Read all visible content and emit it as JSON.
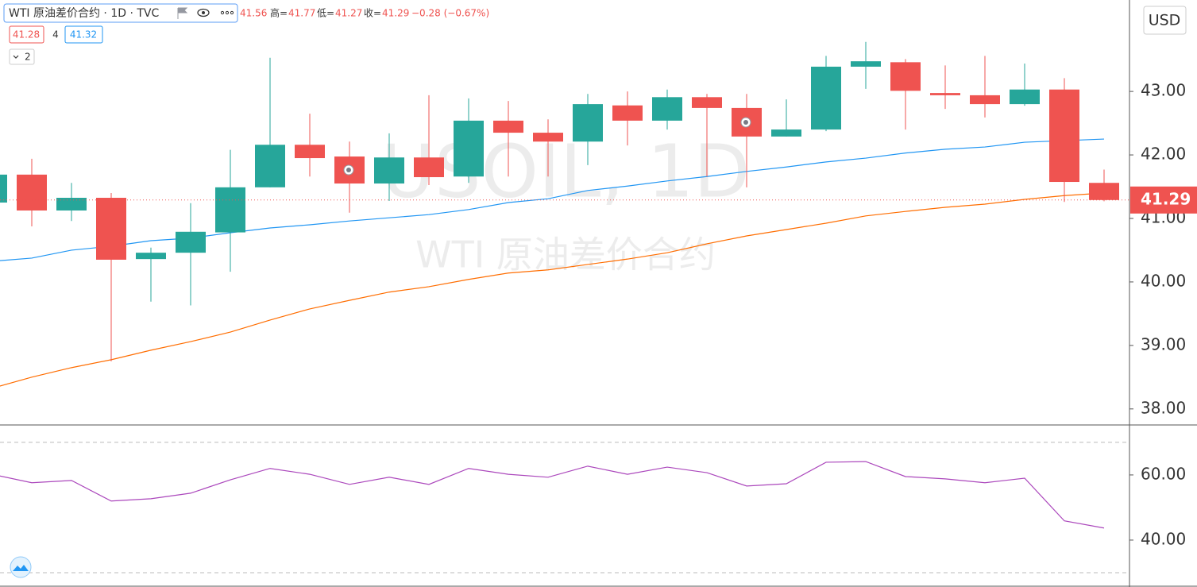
{
  "chart_data": {
    "type": "candlestick",
    "symbol_title": "WTI 原油差价合约 · 1D · TVC",
    "ohlc_labels": [
      "高=",
      "低=",
      "收="
    ],
    "change": "−0.28 (−0.67%)",
    "indicator_legend": {
      "first": 41.28,
      "middle": 4,
      "last": 41.32
    },
    "collapse_label": "2",
    "currency": "USD",
    "watermark": [
      "USOIL, 1D",
      "WTI 原油差价合约"
    ],
    "up_color": "#26a69a",
    "down_color": "#ef5350",
    "candles": [
      {
        "open": 41.25,
        "high": 41.69,
        "low": 41.25,
        "close": 41.69
      },
      {
        "open": 41.69,
        "high": 41.94,
        "low": 40.875,
        "close": 41.125
      },
      {
        "open": 41.125,
        "high": 41.56,
        "low": 40.96,
        "close": 41.325
      },
      {
        "open": 41.325,
        "high": 41.4,
        "low": 38.75,
        "close": 40.35
      },
      {
        "open": 40.36,
        "high": 40.54,
        "low": 39.69,
        "close": 40.46
      },
      {
        "open": 40.46,
        "high": 41.24,
        "low": 39.63,
        "close": 40.79
      },
      {
        "open": 40.78,
        "high": 42.08,
        "low": 40.16,
        "close": 41.49
      },
      {
        "open": 41.49,
        "high": 43.53,
        "low": 41.49,
        "close": 42.16
      },
      {
        "open": 42.16,
        "high": 42.65,
        "low": 41.66,
        "close": 41.95
      },
      {
        "open": 41.975,
        "high": 42.21,
        "low": 41.09,
        "close": 41.55
      },
      {
        "open": 41.55,
        "high": 42.34,
        "low": 41.275,
        "close": 41.96
      },
      {
        "open": 41.96,
        "high": 42.94,
        "low": 41.525,
        "close": 41.65
      },
      {
        "open": 41.66,
        "high": 42.89,
        "low": 41.56,
        "close": 42.54
      },
      {
        "open": 42.54,
        "high": 42.85,
        "low": 41.66,
        "close": 42.35
      },
      {
        "open": 42.35,
        "high": 42.56,
        "low": 41.66,
        "close": 42.21
      },
      {
        "open": 42.21,
        "high": 42.96,
        "low": 41.84,
        "close": 42.8
      },
      {
        "open": 42.78,
        "high": 43.0,
        "low": 42.15,
        "close": 42.54
      },
      {
        "open": 42.54,
        "high": 43.03,
        "low": 42.4,
        "close": 42.91
      },
      {
        "open": 42.91,
        "high": 42.96,
        "low": 41.66,
        "close": 42.74
      },
      {
        "open": 42.74,
        "high": 42.96,
        "low": 41.49,
        "close": 42.29
      },
      {
        "open": 42.29,
        "high": 42.875,
        "low": 42.29,
        "close": 42.4
      },
      {
        "open": 42.4,
        "high": 43.56,
        "low": 42.375,
        "close": 43.39
      },
      {
        "open": 43.39,
        "high": 43.78,
        "low": 43.04,
        "close": 43.475
      },
      {
        "open": 43.46,
        "high": 43.51,
        "low": 42.4,
        "close": 43.01
      },
      {
        "open": 42.975,
        "high": 43.41,
        "low": 42.725,
        "close": 42.94
      },
      {
        "open": 42.94,
        "high": 43.56,
        "low": 42.59,
        "close": 42.8
      },
      {
        "open": 42.8,
        "high": 43.44,
        "low": 42.775,
        "close": 43.03
      },
      {
        "open": 43.03,
        "high": 43.21,
        "low": 41.26,
        "close": 41.575
      },
      {
        "open": 41.56,
        "high": 41.77,
        "low": 41.27,
        "close": 41.29
      }
    ],
    "series": [
      {
        "color": "#2196f3",
        "values": [
          40.325,
          40.375,
          40.5,
          40.5625,
          40.65,
          40.69,
          40.775,
          40.85,
          40.9,
          40.96,
          41.01,
          41.06,
          41.14,
          41.25,
          41.31,
          41.44,
          41.51,
          41.59,
          41.66,
          41.74,
          41.81,
          41.89,
          41.95,
          42.03,
          42.09,
          42.125,
          42.2,
          42.225,
          42.25
        ]
      },
      {
        "color": "#ff6d00",
        "values": [
          38.325,
          38.5,
          38.65,
          38.775,
          38.925,
          39.06,
          39.21,
          39.4,
          39.575,
          39.71,
          39.84,
          39.925,
          40.04,
          40.14,
          40.19,
          40.275,
          40.36,
          40.46,
          40.6,
          40.725,
          40.825,
          40.925,
          41.04,
          41.11,
          41.175,
          41.225,
          41.3,
          41.36,
          41.4
        ]
      }
    ],
    "ylim": [
      37.76,
      44.44
    ],
    "yticks": [
      {
        "value": 38,
        "label": "38.00"
      },
      {
        "value": 39,
        "label": "39.00"
      },
      {
        "value": 40,
        "label": "40.00"
      },
      {
        "value": 41,
        "label": "41.00"
      },
      {
        "value": 42,
        "label": "42.00"
      },
      {
        "value": 43,
        "label": "43.00"
      }
    ],
    "grid": false,
    "rsi": {
      "color": "#ab47bc",
      "values": [
        60.2,
        57.6,
        58.3,
        52.0,
        52.7,
        54.4,
        58.5,
        62.0,
        60.2,
        57.1,
        59.3,
        57.1,
        62.0,
        60.2,
        59.3,
        62.7,
        60.2,
        62.4,
        60.7,
        56.6,
        57.3,
        63.9,
        64.1,
        59.5,
        58.8,
        57.6,
        59.0,
        45.9,
        43.7
      ],
      "ylim": [
        25.6,
        75.1
      ],
      "yticks": [
        {
          "value": 40,
          "label": "40.00"
        },
        {
          "value": 60,
          "label": "60.00"
        }
      ],
      "bands": [
        70,
        30
      ]
    }
  }
}
